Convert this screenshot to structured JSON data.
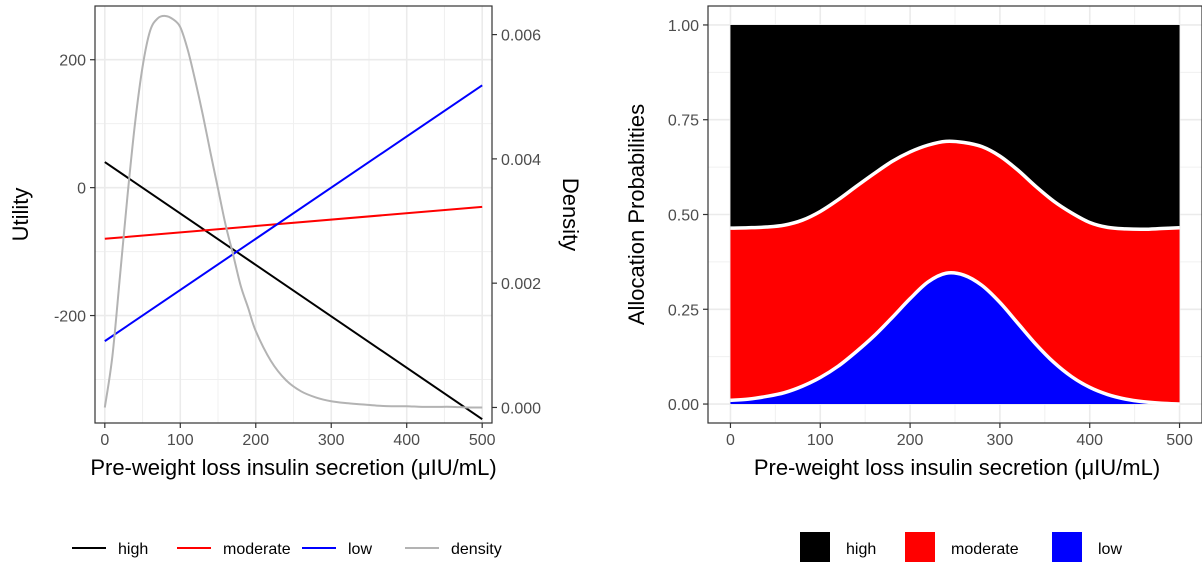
{
  "chart_data": [
    {
      "type": "line",
      "xlabel": "Pre-weight loss insulin secretion (μIU/mL)",
      "ylabel": "Utility",
      "y2label": "Density",
      "xlim": [
        -13,
        513
      ],
      "ylim": [
        -368,
        284
      ],
      "y2lim": [
        -0.00025,
        0.00646
      ],
      "xticks": [
        0,
        100,
        200,
        300,
        400,
        500
      ],
      "yticks": [
        -200,
        0,
        200
      ],
      "y2ticks": [
        0.0,
        0.002,
        0.004,
        0.006
      ],
      "y2ticklabels": [
        "0.000",
        "0.002",
        "0.004",
        "0.006"
      ],
      "grid": true,
      "legend": "bottom",
      "series": [
        {
          "name": "high",
          "color": "#000000",
          "axis": "left",
          "x": [
            0,
            500
          ],
          "y": [
            40,
            -362
          ]
        },
        {
          "name": "moderate",
          "color": "#ff0000",
          "axis": "left",
          "x": [
            0,
            500
          ],
          "y": [
            -80,
            -30
          ]
        },
        {
          "name": "low",
          "color": "#0000ff",
          "axis": "left",
          "x": [
            0,
            500
          ],
          "y": [
            -240,
            160
          ]
        },
        {
          "name": "density",
          "color": "#b3b3b3",
          "axis": "right",
          "x": [
            0,
            10,
            20,
            30,
            40,
            50,
            60,
            70,
            80,
            90,
            100,
            110,
            120,
            130,
            140,
            150,
            160,
            170,
            180,
            190,
            200,
            220,
            240,
            260,
            280,
            300,
            320,
            340,
            360,
            380,
            400,
            420,
            440,
            460,
            480,
            500
          ],
          "y": [
            0.0,
            0.00082,
            0.0021,
            0.0034,
            0.00457,
            0.00548,
            0.00606,
            0.00626,
            0.0063,
            0.00625,
            0.00612,
            0.00575,
            0.00525,
            0.0047,
            0.0041,
            0.00352,
            0.00294,
            0.00246,
            0.00196,
            0.0016,
            0.00123,
            0.00075,
            0.00044,
            0.00026,
            0.00016,
            0.0001,
            7e-05,
            5e-05,
            3e-05,
            2e-05,
            2e-05,
            1e-05,
            1e-05,
            1e-05,
            0.0,
            0.0
          ]
        }
      ]
    },
    {
      "type": "area",
      "stacked": true,
      "xlabel": "Pre-weight loss insulin secretion (μIU/mL)",
      "ylabel": "Allocation Probabilities",
      "xlim": [
        -25,
        525
      ],
      "ylim": [
        -0.05,
        1.05
      ],
      "xticks": [
        0,
        100,
        200,
        300,
        400,
        500
      ],
      "yticks": [
        0.0,
        0.25,
        0.5,
        0.75,
        1.0
      ],
      "yticklabels": [
        "0.00",
        "0.25",
        "0.50",
        "0.75",
        "1.00"
      ],
      "grid": true,
      "legend": "bottom",
      "x": [
        0,
        20,
        40,
        60,
        80,
        100,
        120,
        140,
        160,
        180,
        200,
        220,
        240,
        260,
        280,
        300,
        320,
        340,
        360,
        380,
        400,
        420,
        440,
        460,
        480,
        500
      ],
      "series": [
        {
          "name": "low",
          "color": "#0000ff",
          "values": [
            0.01,
            0.013,
            0.02,
            0.03,
            0.047,
            0.07,
            0.1,
            0.138,
            0.18,
            0.228,
            0.278,
            0.322,
            0.345,
            0.34,
            0.313,
            0.268,
            0.213,
            0.158,
            0.11,
            0.072,
            0.044,
            0.025,
            0.013,
            0.006,
            0.002,
            0.0
          ]
        },
        {
          "name": "moderate",
          "color": "#ff0000",
          "values": [
            0.454,
            0.452,
            0.447,
            0.442,
            0.438,
            0.438,
            0.439,
            0.436,
            0.428,
            0.412,
            0.387,
            0.361,
            0.348,
            0.35,
            0.366,
            0.386,
            0.404,
            0.416,
            0.425,
            0.432,
            0.435,
            0.441,
            0.449,
            0.455,
            0.461,
            0.465
          ]
        },
        {
          "name": "high",
          "color": "#000000",
          "values": [
            0.536,
            0.535,
            0.533,
            0.528,
            0.515,
            0.492,
            0.461,
            0.426,
            0.392,
            0.36,
            0.335,
            0.317,
            0.307,
            0.31,
            0.321,
            0.346,
            0.383,
            0.426,
            0.465,
            0.496,
            0.521,
            0.534,
            0.538,
            0.539,
            0.537,
            0.535
          ]
        }
      ]
    }
  ]
}
